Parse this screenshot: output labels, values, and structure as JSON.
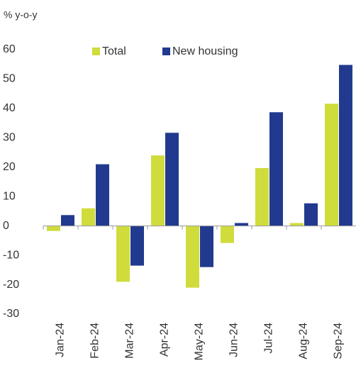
{
  "chart_data": {
    "type": "bar",
    "y_label": "% y-o-y",
    "categories": [
      "Jan-24",
      "Feb-24",
      "Mar-24",
      "Apr-24",
      "May-24",
      "Jun-24",
      "Jul-24",
      "Aug-24",
      "Sep-24"
    ],
    "series": [
      {
        "name": "Total",
        "color": "#cfdc3c",
        "values": [
          -1.7,
          6,
          -19,
          24,
          -21,
          -5.8,
          19.7,
          1,
          41.6
        ]
      },
      {
        "name": "New housing",
        "color": "#213a8f",
        "values": [
          3.7,
          21,
          -13.5,
          31.7,
          -14,
          1,
          38.7,
          7.7,
          54.8
        ]
      }
    ],
    "ylim": [
      -30,
      60
    ],
    "yticks": [
      -30,
      -20,
      -10,
      0,
      10,
      20,
      30,
      40,
      50,
      60
    ],
    "legend": "top"
  }
}
